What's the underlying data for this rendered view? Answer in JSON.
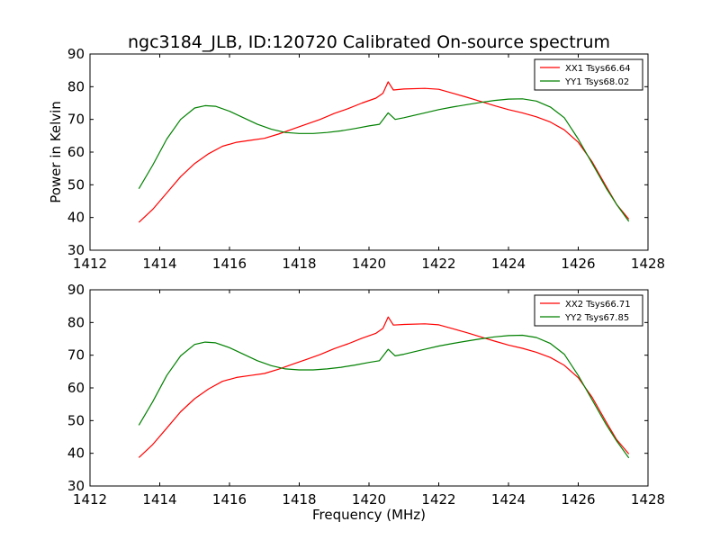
{
  "figure": {
    "title": "ngc3184_JLB, ID:120720 Calibrated On-source spectrum",
    "ylabel": "Power in Kelvin",
    "xlabel": "Frequency (MHz)"
  },
  "chart_data": [
    {
      "type": "line",
      "title": "ngc3184_JLB, ID:120720 Calibrated On-source spectrum",
      "xlabel": "",
      "ylabel": "Power in Kelvin",
      "xlim": [
        1412,
        1428
      ],
      "ylim": [
        30,
        90
      ],
      "xticks": [
        "1412",
        "1414",
        "1416",
        "1418",
        "1420",
        "1422",
        "1424",
        "1426",
        "1428"
      ],
      "yticks": [
        "30",
        "40",
        "50",
        "60",
        "70",
        "80",
        "90"
      ],
      "grid": false,
      "legend_position": "top-right",
      "series": [
        {
          "name": "XX1 Tsys66.64",
          "color": "#ff0000",
          "x": [
            1413.4,
            1413.8,
            1414.2,
            1414.6,
            1415.0,
            1415.4,
            1415.8,
            1416.2,
            1416.6,
            1417.0,
            1417.4,
            1417.8,
            1418.2,
            1418.6,
            1419.0,
            1419.4,
            1419.8,
            1420.2,
            1420.4,
            1420.55,
            1420.7,
            1421.0,
            1421.6,
            1422.0,
            1422.4,
            1422.8,
            1423.2,
            1423.6,
            1424.0,
            1424.4,
            1424.8,
            1425.2,
            1425.6,
            1426.0,
            1426.4,
            1426.8,
            1427.1,
            1427.45
          ],
          "y": [
            38.5,
            42.5,
            47.5,
            52.5,
            56.5,
            59.5,
            61.8,
            63.0,
            63.6,
            64.2,
            65.5,
            67.0,
            68.5,
            70.0,
            71.8,
            73.3,
            75.0,
            76.5,
            78.0,
            81.5,
            79.0,
            79.3,
            79.5,
            79.2,
            78.0,
            76.8,
            75.5,
            74.2,
            73.0,
            72.0,
            70.8,
            69.2,
            66.8,
            63.0,
            57.0,
            49.5,
            44.0,
            39.5
          ]
        },
        {
          "name": "YY1 Tsys68.02",
          "color": "#008000",
          "x": [
            1413.4,
            1413.8,
            1414.2,
            1414.6,
            1415.0,
            1415.3,
            1415.6,
            1416.0,
            1416.4,
            1416.8,
            1417.2,
            1417.6,
            1418.0,
            1418.4,
            1418.8,
            1419.2,
            1419.6,
            1420.0,
            1420.3,
            1420.55,
            1420.75,
            1421.0,
            1421.6,
            1422.0,
            1422.4,
            1422.8,
            1423.2,
            1423.6,
            1424.0,
            1424.4,
            1424.8,
            1425.2,
            1425.6,
            1426.0,
            1426.4,
            1426.8,
            1427.1,
            1427.45
          ],
          "y": [
            48.8,
            56.0,
            64.0,
            70.0,
            73.5,
            74.2,
            74.0,
            72.5,
            70.5,
            68.5,
            67.0,
            66.0,
            65.7,
            65.7,
            66.0,
            66.5,
            67.2,
            68.0,
            68.5,
            72.0,
            70.0,
            70.5,
            72.0,
            73.0,
            73.8,
            74.5,
            75.2,
            75.8,
            76.2,
            76.3,
            75.6,
            73.8,
            70.5,
            64.0,
            56.5,
            49.0,
            44.0,
            38.8
          ]
        }
      ]
    },
    {
      "type": "line",
      "title": "",
      "xlabel": "Frequency (MHz)",
      "ylabel": "",
      "xlim": [
        1412,
        1428
      ],
      "ylim": [
        30,
        90
      ],
      "xticks": [
        "1412",
        "1414",
        "1416",
        "1418",
        "1420",
        "1422",
        "1424",
        "1426",
        "1428"
      ],
      "yticks": [
        "30",
        "40",
        "50",
        "60",
        "70",
        "80",
        "90"
      ],
      "grid": false,
      "legend_position": "top-right",
      "series": [
        {
          "name": "XX2 Tsys66.71",
          "color": "#ff0000",
          "x": [
            1413.4,
            1413.8,
            1414.2,
            1414.6,
            1415.0,
            1415.4,
            1415.8,
            1416.2,
            1416.6,
            1417.0,
            1417.4,
            1417.8,
            1418.2,
            1418.6,
            1419.0,
            1419.4,
            1419.8,
            1420.2,
            1420.4,
            1420.55,
            1420.7,
            1421.0,
            1421.6,
            1422.0,
            1422.4,
            1422.8,
            1423.2,
            1423.6,
            1424.0,
            1424.4,
            1424.8,
            1425.2,
            1425.6,
            1426.0,
            1426.4,
            1426.8,
            1427.1,
            1427.45
          ],
          "y": [
            38.7,
            42.7,
            47.7,
            52.7,
            56.7,
            59.7,
            62.0,
            63.2,
            63.8,
            64.4,
            65.7,
            67.2,
            68.7,
            70.2,
            72.0,
            73.5,
            75.2,
            76.7,
            78.2,
            81.7,
            79.2,
            79.4,
            79.6,
            79.3,
            78.1,
            76.9,
            75.6,
            74.3,
            73.1,
            72.1,
            70.9,
            69.3,
            66.9,
            63.1,
            57.1,
            49.6,
            44.2,
            39.8
          ]
        },
        {
          "name": "YY2 Tsys67.85",
          "color": "#008000",
          "x": [
            1413.4,
            1413.8,
            1414.2,
            1414.6,
            1415.0,
            1415.3,
            1415.6,
            1416.0,
            1416.4,
            1416.8,
            1417.2,
            1417.6,
            1418.0,
            1418.4,
            1418.8,
            1419.2,
            1419.6,
            1420.0,
            1420.3,
            1420.55,
            1420.75,
            1421.0,
            1421.6,
            1422.0,
            1422.4,
            1422.8,
            1423.2,
            1423.6,
            1424.0,
            1424.4,
            1424.8,
            1425.2,
            1425.6,
            1426.0,
            1426.4,
            1426.8,
            1427.1,
            1427.45
          ],
          "y": [
            48.6,
            55.8,
            63.8,
            69.8,
            73.3,
            74.0,
            73.8,
            72.3,
            70.3,
            68.3,
            66.8,
            65.8,
            65.5,
            65.5,
            65.8,
            66.3,
            67.0,
            67.8,
            68.3,
            71.8,
            69.8,
            70.3,
            71.8,
            72.8,
            73.6,
            74.3,
            75.0,
            75.6,
            76.0,
            76.1,
            75.4,
            73.6,
            70.3,
            63.8,
            56.3,
            48.8,
            43.8,
            38.6
          ]
        }
      ]
    }
  ]
}
